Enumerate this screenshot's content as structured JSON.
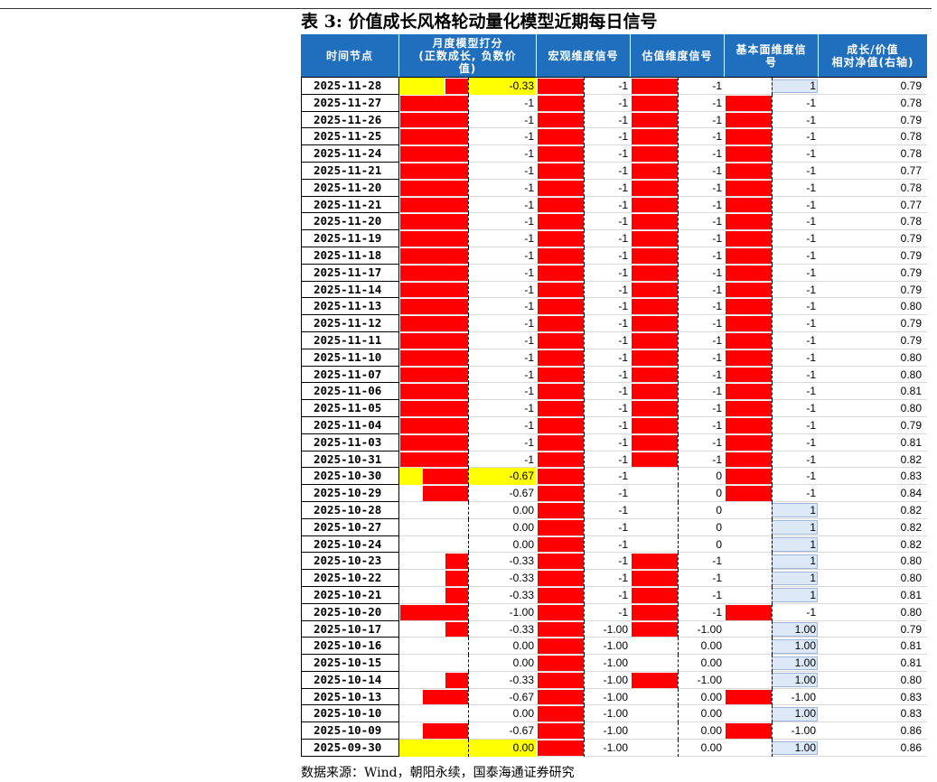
{
  "title": "表 3:  价值成长风格轮动量化模型近期每日信号",
  "headers": [
    "时间节点",
    "月度模型打分\n(正数成长, 负数价\n值)",
    "宏观维度信号",
    "估值维度信号",
    "基本面维度信\n号",
    "成长/价值\n相对净值(右轴)"
  ],
  "rows": [
    {
      "date": "2025-11-28",
      "score": "-0.33",
      "macro": "-1",
      "valuation": "-1",
      "fund": "1",
      "nav": "0.79"
    },
    {
      "date": "2025-11-27",
      "score": "-1",
      "macro": "-1",
      "valuation": "-1",
      "fund": "-1",
      "nav": "0.78"
    },
    {
      "date": "2025-11-26",
      "score": "-1",
      "macro": "-1",
      "valuation": "-1",
      "fund": "-1",
      "nav": "0.79"
    },
    {
      "date": "2025-11-25",
      "score": "-1",
      "macro": "-1",
      "valuation": "-1",
      "fund": "-1",
      "nav": "0.78"
    },
    {
      "date": "2025-11-24",
      "score": "-1",
      "macro": "-1",
      "valuation": "-1",
      "fund": "-1",
      "nav": "0.78"
    },
    {
      "date": "2025-11-21",
      "score": "-1",
      "macro": "-1",
      "valuation": "-1",
      "fund": "-1",
      "nav": "0.77"
    },
    {
      "date": "2025-11-20",
      "score": "-1",
      "macro": "-1",
      "valuation": "-1",
      "fund": "-1",
      "nav": "0.78"
    },
    {
      "date": "2025-11-21",
      "score": "-1",
      "macro": "-1",
      "valuation": "-1",
      "fund": "-1",
      "nav": "0.77"
    },
    {
      "date": "2025-11-20",
      "score": "-1",
      "macro": "-1",
      "valuation": "-1",
      "fund": "-1",
      "nav": "0.78"
    },
    {
      "date": "2025-11-19",
      "score": "-1",
      "macro": "-1",
      "valuation": "-1",
      "fund": "-1",
      "nav": "0.79"
    },
    {
      "date": "2025-11-18",
      "score": "-1",
      "macro": "-1",
      "valuation": "-1",
      "fund": "-1",
      "nav": "0.79"
    },
    {
      "date": "2025-11-17",
      "score": "-1",
      "macro": "-1",
      "valuation": "-1",
      "fund": "-1",
      "nav": "0.79"
    },
    {
      "date": "2025-11-14",
      "score": "-1",
      "macro": "-1",
      "valuation": "-1",
      "fund": "-1",
      "nav": "0.79"
    },
    {
      "date": "2025-11-13",
      "score": "-1",
      "macro": "-1",
      "valuation": "-1",
      "fund": "-1",
      "nav": "0.80"
    },
    {
      "date": "2025-11-12",
      "score": "-1",
      "macro": "-1",
      "valuation": "-1",
      "fund": "-1",
      "nav": "0.79"
    },
    {
      "date": "2025-11-11",
      "score": "-1",
      "macro": "-1",
      "valuation": "-1",
      "fund": "-1",
      "nav": "0.79"
    },
    {
      "date": "2025-11-10",
      "score": "-1",
      "macro": "-1",
      "valuation": "-1",
      "fund": "-1",
      "nav": "0.80"
    },
    {
      "date": "2025-11-07",
      "score": "-1",
      "macro": "-1",
      "valuation": "-1",
      "fund": "-1",
      "nav": "0.80"
    },
    {
      "date": "2025-11-06",
      "score": "-1",
      "macro": "-1",
      "valuation": "-1",
      "fund": "-1",
      "nav": "0.81"
    },
    {
      "date": "2025-11-05",
      "score": "-1",
      "macro": "-1",
      "valuation": "-1",
      "fund": "-1",
      "nav": "0.80"
    },
    {
      "date": "2025-11-04",
      "score": "-1",
      "macro": "-1",
      "valuation": "-1",
      "fund": "-1",
      "nav": "0.79"
    },
    {
      "date": "2025-11-03",
      "score": "-1",
      "macro": "-1",
      "valuation": "-1",
      "fund": "-1",
      "nav": "0.81"
    },
    {
      "date": "2025-10-31",
      "score": "-1",
      "macro": "-1",
      "valuation": "-1",
      "fund": "-1",
      "nav": "0.82"
    },
    {
      "date": "2025-10-30",
      "score": "-0.67",
      "macro": "-1",
      "valuation": "0",
      "fund": "-1",
      "nav": "0.83"
    },
    {
      "date": "2025-10-29",
      "score": "-0.67",
      "macro": "-1",
      "valuation": "0",
      "fund": "-1",
      "nav": "0.84"
    },
    {
      "date": "2025-10-28",
      "score": "0.00",
      "macro": "-1",
      "valuation": "0",
      "fund": "1",
      "nav": "0.82"
    },
    {
      "date": "2025-10-27",
      "score": "0.00",
      "macro": "-1",
      "valuation": "0",
      "fund": "1",
      "nav": "0.82"
    },
    {
      "date": "2025-10-24",
      "score": "0.00",
      "macro": "-1",
      "valuation": "0",
      "fund": "1",
      "nav": "0.82"
    },
    {
      "date": "2025-10-23",
      "score": "-0.33",
      "macro": "-1",
      "valuation": "-1",
      "fund": "1",
      "nav": "0.80"
    },
    {
      "date": "2025-10-22",
      "score": "-0.33",
      "macro": "-1",
      "valuation": "-1",
      "fund": "1",
      "nav": "0.80"
    },
    {
      "date": "2025-10-21",
      "score": "-0.33",
      "macro": "-1",
      "valuation": "-1",
      "fund": "1",
      "nav": "0.81"
    },
    {
      "date": "2025-10-20",
      "score": "-1.00",
      "macro": "-1",
      "valuation": "-1",
      "fund": "-1",
      "nav": "0.80"
    },
    {
      "date": "2025-10-17",
      "score": "-0.33",
      "macro": "-1.00",
      "valuation": "-1.00",
      "fund": "1.00",
      "nav": "0.79"
    },
    {
      "date": "2025-10-16",
      "score": "0.00",
      "macro": "-1.00",
      "valuation": "0.00",
      "fund": "1.00",
      "nav": "0.81"
    },
    {
      "date": "2025-10-15",
      "score": "0.00",
      "macro": "-1.00",
      "valuation": "0.00",
      "fund": "1.00",
      "nav": "0.81"
    },
    {
      "date": "2025-10-14",
      "score": "-0.33",
      "macro": "-1.00",
      "valuation": "-1.00",
      "fund": "1.00",
      "nav": "0.80"
    },
    {
      "date": "2025-10-13",
      "score": "-0.67",
      "macro": "-1.00",
      "valuation": "0.00",
      "fund": "-1.00",
      "nav": "0.83"
    },
    {
      "date": "2025-10-10",
      "score": "0.00",
      "macro": "-1.00",
      "valuation": "0.00",
      "fund": "1.00",
      "nav": "0.83"
    },
    {
      "date": "2025-10-09",
      "score": "-0.67",
      "macro": "-1.00",
      "valuation": "0.00",
      "fund": "-1.00",
      "nav": "0.86"
    },
    {
      "date": "2025-09-30",
      "score": "0.00",
      "macro": "-1.00",
      "valuation": "0.00",
      "fund": "1.00",
      "nav": "0.86"
    }
  ],
  "highlight_rows": [
    "2025-11-28",
    "2025-10-30",
    "2025-09-30"
  ],
  "source": "数据来源：Wind，朝阳永续，国泰海通证券研究",
  "colors": {
    "header_bg": "#1f6fbe",
    "negative_bar": "#ff0000",
    "positive_bar": "#dde8f7",
    "highlight": "#ffff00"
  }
}
